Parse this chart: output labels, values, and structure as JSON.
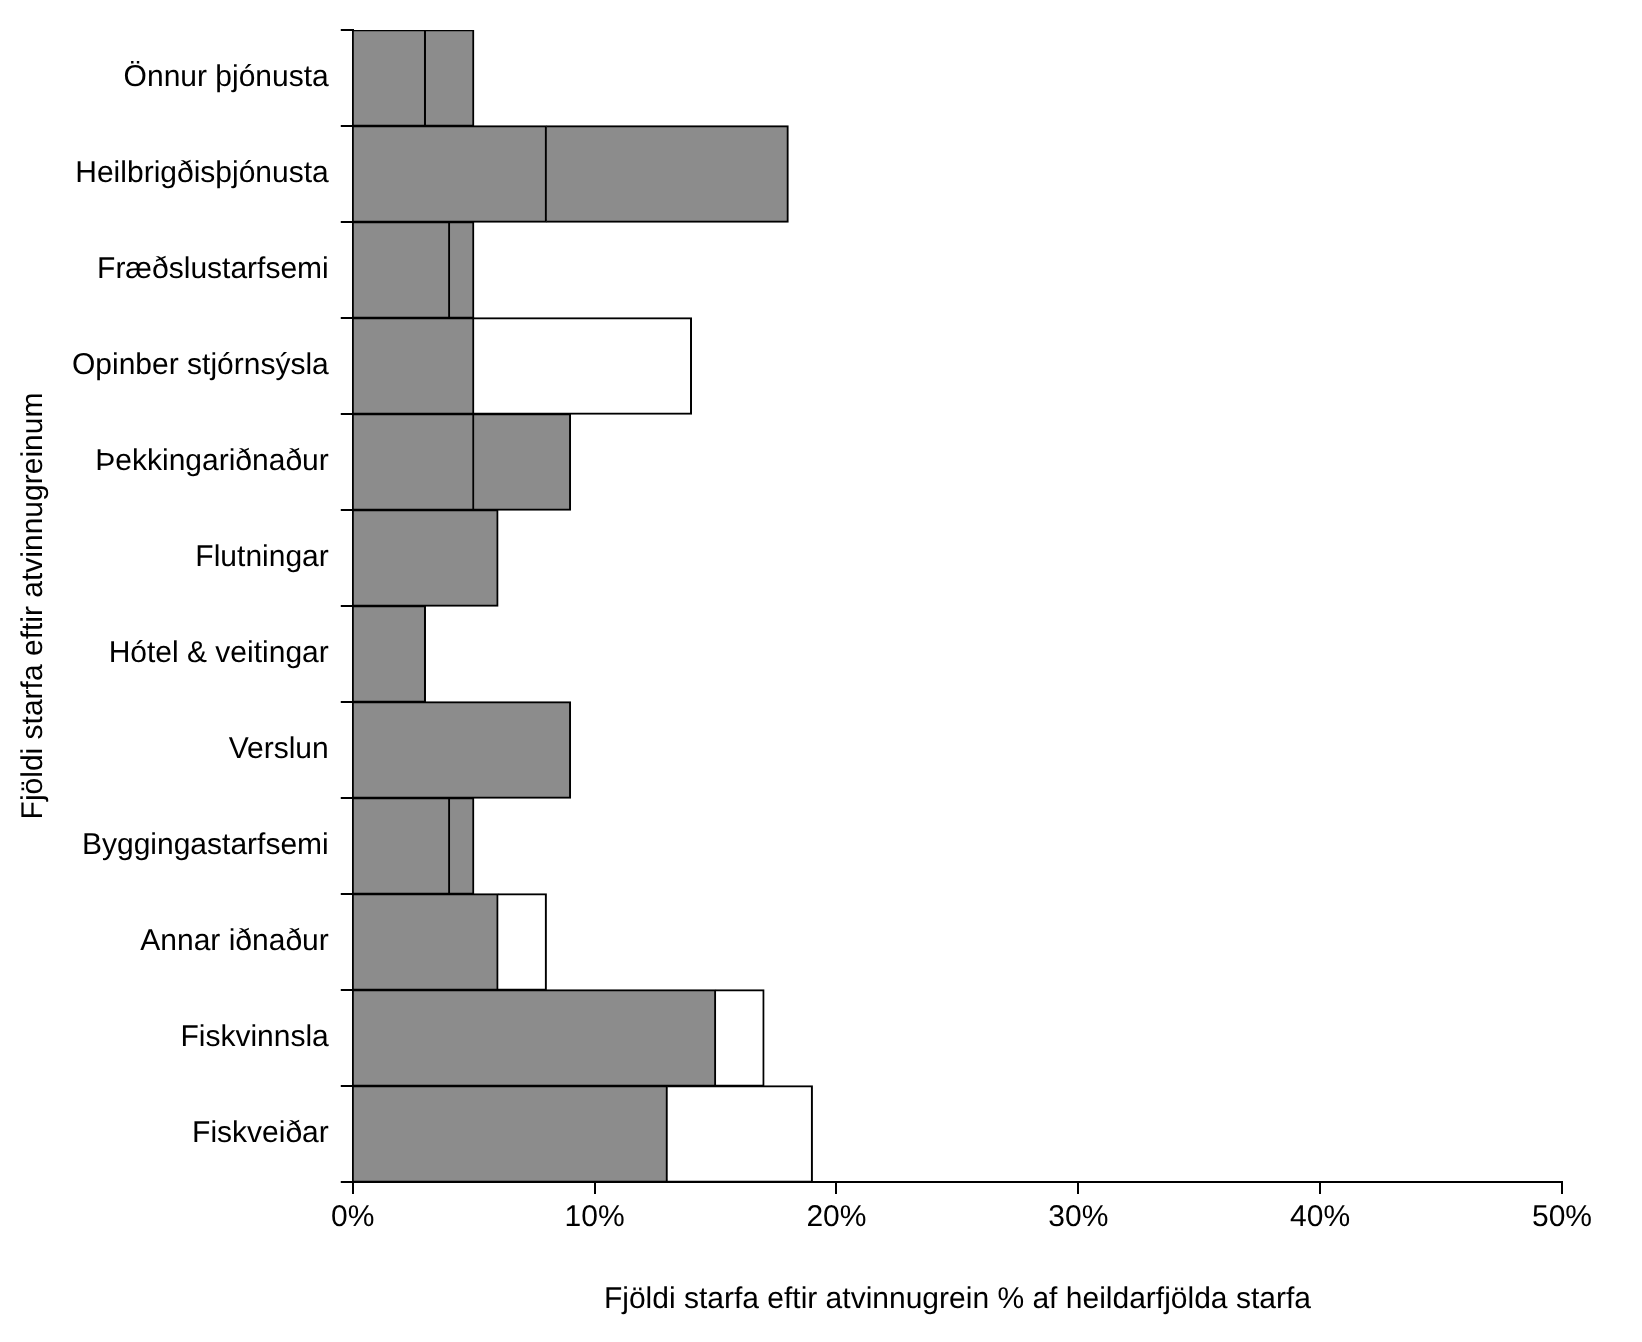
{
  "chart_data": {
    "type": "bar",
    "orientation": "horizontal",
    "xlabel": "Fjöldi starfa eftir atvinnugrein % af heildarfjölda starfa",
    "ylabel": "Fjöldi starfa eftir atvinnugreinum",
    "categories": [
      "Önnur þjónusta",
      "Heilbrigðisþjónusta",
      "Fræðslustarfsemi",
      "Opinber stjórnsýsla",
      "Þekkingariðnaður",
      "Flutningar",
      "Hótel & veitingar",
      "Verslun",
      "Byggingastarfsemi",
      "Annar iðnaður",
      "Fiskvinnsla",
      "Fiskveiðar"
    ],
    "series": [
      {
        "color": "#8c8c8c",
        "values": [
          3,
          8,
          4,
          5,
          5,
          6,
          3,
          9,
          4,
          6,
          15,
          13
        ]
      },
      {
        "colors": [
          "#8c8c8c",
          "#8c8c8c",
          "#8c8c8c",
          "#ffffff",
          "#8c8c8c",
          "#8c8c8c",
          "#8c8c8c",
          "#8c8c8c",
          "#8c8c8c",
          "#ffffff",
          "#ffffff",
          "#ffffff"
        ],
        "values": [
          2,
          10,
          1,
          9,
          4,
          null,
          null,
          null,
          1,
          2,
          2,
          6
        ]
      }
    ],
    "stacked": true,
    "xlim": [
      0,
      50
    ],
    "xticks": [
      {
        "value": 0,
        "label": "0%"
      },
      {
        "value": 10,
        "label": "10%"
      },
      {
        "value": 20,
        "label": "20%"
      },
      {
        "value": 30,
        "label": "30%"
      },
      {
        "value": 40,
        "label": "40%"
      },
      {
        "value": 50,
        "label": "50%"
      }
    ],
    "grid": false,
    "legend": false
  }
}
